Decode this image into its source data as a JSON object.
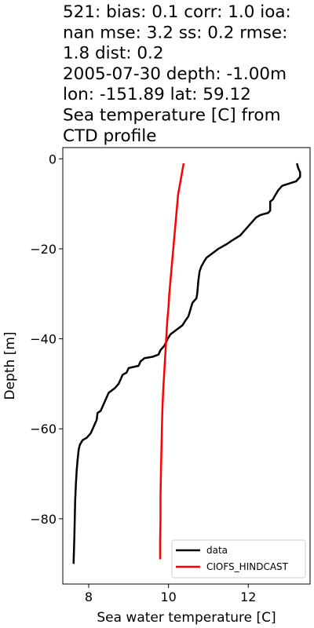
{
  "title_lines": [
    "521: bias: 0.1  corr: 1.0  ioa:",
    "nan  mse: 3.2  ss: 0.2  rmse:",
    "1.8  dist: 0.2",
    "2005-07-30 depth: -1.00m",
    "lon: -151.89 lat: 59.12",
    "Sea temperature [C] from",
    "CTD profile"
  ],
  "chart_data": {
    "type": "line",
    "title": "521: bias: 0.1  corr: 1.0  ioa: nan  mse: 3.2  ss: 0.2  rmse: 1.8  dist: 0.2 2005-07-30 depth: -1.00m lon: -151.89 lat: 59.12 Sea temperature [C] from CTD profile",
    "xlabel": "Sea water temperature [C]",
    "ylabel": "Depth [m]",
    "xlim": [
      7.35,
      13.55
    ],
    "ylim": [
      -94.5,
      2.5
    ],
    "x_ticks": [
      8,
      10,
      12
    ],
    "x_tick_labels": [
      "8",
      "10",
      "12"
    ],
    "y_ticks": [
      0,
      -20,
      -40,
      -60,
      -80
    ],
    "y_tick_labels": [
      "0",
      "−20",
      "−40",
      "−60",
      "−80"
    ],
    "grid": false,
    "legend_position": "lower-right",
    "series": [
      {
        "name": "data",
        "color": "#000000",
        "points": [
          [
            13.22,
            -1.0
          ],
          [
            13.25,
            -2.0
          ],
          [
            13.3,
            -3.0
          ],
          [
            13.3,
            -4.0
          ],
          [
            13.2,
            -5.0
          ],
          [
            12.85,
            -6.0
          ],
          [
            12.75,
            -7.0
          ],
          [
            12.65,
            -8.5
          ],
          [
            12.62,
            -9.0
          ],
          [
            12.55,
            -9.5
          ],
          [
            12.55,
            -11.5
          ],
          [
            12.5,
            -12.0
          ],
          [
            12.3,
            -12.5
          ],
          [
            12.2,
            -13.0
          ],
          [
            12.1,
            -14.0
          ],
          [
            12.0,
            -15.0
          ],
          [
            11.9,
            -16.0
          ],
          [
            11.8,
            -17.0
          ],
          [
            11.62,
            -18.0
          ],
          [
            11.45,
            -19.0
          ],
          [
            11.25,
            -20.0
          ],
          [
            11.1,
            -21.0
          ],
          [
            10.95,
            -22.0
          ],
          [
            10.88,
            -23.0
          ],
          [
            10.82,
            -24.0
          ],
          [
            10.78,
            -25.0
          ],
          [
            10.75,
            -27.0
          ],
          [
            10.72,
            -30.0
          ],
          [
            10.7,
            -31.0
          ],
          [
            10.6,
            -32.0
          ],
          [
            10.55,
            -33.5
          ],
          [
            10.5,
            -35.0
          ],
          [
            10.42,
            -36.0
          ],
          [
            10.35,
            -37.0
          ],
          [
            10.2,
            -38.0
          ],
          [
            10.05,
            -39.0
          ],
          [
            9.98,
            -40.0
          ],
          [
            9.9,
            -41.5
          ],
          [
            9.8,
            -42.5
          ],
          [
            9.75,
            -43.5
          ],
          [
            9.6,
            -44.0
          ],
          [
            9.4,
            -44.3
          ],
          [
            9.3,
            -45.0
          ],
          [
            9.25,
            -46.0
          ],
          [
            9.0,
            -46.5
          ],
          [
            8.95,
            -47.5
          ],
          [
            8.85,
            -48.0
          ],
          [
            8.8,
            -49.0
          ],
          [
            8.75,
            -50.0
          ],
          [
            8.65,
            -51.0
          ],
          [
            8.5,
            -52.0
          ],
          [
            8.45,
            -53.0
          ],
          [
            8.35,
            -55.0
          ],
          [
            8.3,
            -56.0
          ],
          [
            8.22,
            -56.5
          ],
          [
            8.2,
            -58.0
          ],
          [
            8.15,
            -59.0
          ],
          [
            8.1,
            -60.0
          ],
          [
            8.05,
            -61.0
          ],
          [
            7.95,
            -62.0
          ],
          [
            7.85,
            -62.5
          ],
          [
            7.78,
            -63.5
          ],
          [
            7.75,
            -64.5
          ],
          [
            7.72,
            -67.0
          ],
          [
            7.7,
            -69.0
          ],
          [
            7.68,
            -72.0
          ],
          [
            7.66,
            -76.0
          ],
          [
            7.65,
            -80.0
          ],
          [
            7.64,
            -84.0
          ],
          [
            7.63,
            -87.0
          ],
          [
            7.62,
            -90.0
          ]
        ]
      },
      {
        "name": "CIOFS_HINDCAST",
        "color": "#ff0000",
        "points": [
          [
            10.38,
            -1.0
          ],
          [
            10.36,
            -2.0
          ],
          [
            10.34,
            -3.0
          ],
          [
            10.32,
            -4.0
          ],
          [
            10.3,
            -5.0
          ],
          [
            10.28,
            -6.0
          ],
          [
            10.26,
            -7.0
          ],
          [
            10.24,
            -8.0
          ],
          [
            10.22,
            -10.0
          ],
          [
            10.2,
            -12.0
          ],
          [
            10.17,
            -15.0
          ],
          [
            10.14,
            -18.0
          ],
          [
            10.11,
            -21.0
          ],
          [
            10.08,
            -24.0
          ],
          [
            10.05,
            -27.0
          ],
          [
            10.02,
            -30.0
          ],
          [
            10.0,
            -33.0
          ],
          [
            9.97,
            -36.0
          ],
          [
            9.95,
            -39.0
          ],
          [
            9.93,
            -42.0
          ],
          [
            9.91,
            -45.0
          ],
          [
            9.89,
            -48.0
          ],
          [
            9.87,
            -51.0
          ],
          [
            9.85,
            -55.0
          ],
          [
            9.84,
            -58.0
          ],
          [
            9.83,
            -62.0
          ],
          [
            9.82,
            -66.0
          ],
          [
            9.81,
            -70.0
          ],
          [
            9.8,
            -75.0
          ],
          [
            9.8,
            -80.0
          ],
          [
            9.79,
            -85.0
          ],
          [
            9.79,
            -89.0
          ]
        ]
      }
    ]
  }
}
